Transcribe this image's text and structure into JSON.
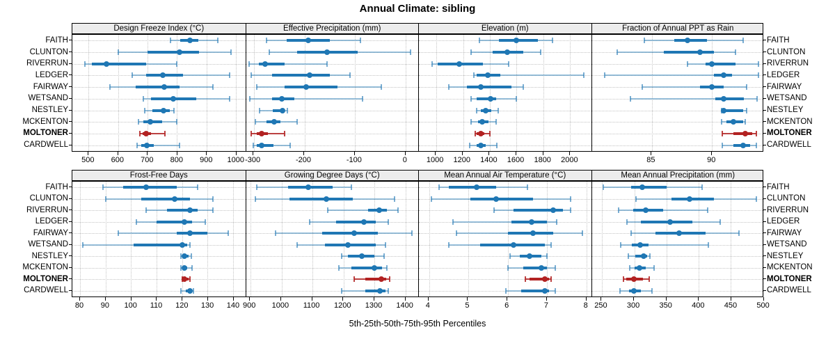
{
  "title": "Annual Climate: sibling",
  "subtitle": "5th-25th-50th-75th-95th Percentiles",
  "stations": [
    "FAITH",
    "CLUNTON",
    "RIVERRUN",
    "LEDGER",
    "FAIRWAY",
    "WETSAND",
    "NESTLEY",
    "MCKENTON",
    "MOLTONER",
    "CARDWELL"
  ],
  "highlight_station": "MOLTONER",
  "colors": {
    "series": "#1f77b4",
    "series_whisker": "rgba(31,119,180,0.45)",
    "series_cap": "rgba(31,119,180,0.6)",
    "highlight": "#b22222",
    "highlight_whisker": "rgba(178,34,34,0.85)",
    "header_bg": "#ececec",
    "grid": "#c3c3c3",
    "border": "#000000"
  },
  "chart_data": {
    "type": "dotplot",
    "subtype": "percentile-intervals",
    "percentile_labels": [
      "5th",
      "25th",
      "50th",
      "75th",
      "95th"
    ],
    "legend_position": "none",
    "grid": "dotted",
    "layout": {
      "rows": 2,
      "cols": 4
    },
    "categories": [
      "FAITH",
      "CLUNTON",
      "RIVERRUN",
      "LEDGER",
      "FAIRWAY",
      "WETSAND",
      "NESTLEY",
      "MCKENTON",
      "MOLTONER",
      "CARDWELL"
    ],
    "panels": [
      {
        "title": "Design Freeze Index (°C)",
        "xlim": [
          445,
          1030
        ],
        "ticks": [
          500,
          600,
          700,
          800,
          900,
          1000
        ],
        "values": [
          [
            778,
            812,
            845,
            872,
            940
          ],
          [
            600,
            700,
            810,
            875,
            985
          ],
          [
            487,
            512,
            560,
            695,
            800
          ],
          [
            648,
            695,
            753,
            820,
            980
          ],
          [
            573,
            660,
            757,
            808,
            922
          ],
          [
            685,
            712,
            787,
            865,
            980
          ],
          [
            690,
            717,
            755,
            775,
            790
          ],
          [
            670,
            687,
            710,
            750,
            800
          ],
          [
            675,
            683,
            696,
            712,
            760
          ],
          [
            665,
            680,
            697,
            722,
            810
          ]
        ]
      },
      {
        "title": "Effective Precipitation (mm)",
        "xlim": [
          -316,
          25
        ],
        "ticks": [
          -300,
          -200,
          -100,
          0
        ],
        "values": [
          [
            -275,
            -235,
            -193,
            -150,
            -90
          ],
          [
            -270,
            -215,
            -155,
            -95,
            10
          ],
          [
            -310,
            -290,
            -278,
            -240,
            -155
          ],
          [
            -305,
            -265,
            -190,
            -150,
            -110
          ],
          [
            -295,
            -240,
            -197,
            -135,
            -48
          ],
          [
            -308,
            -265,
            -245,
            -220,
            -85
          ],
          [
            -289,
            -263,
            -244,
            -239,
            -234
          ],
          [
            -298,
            -275,
            -260,
            -248,
            -215
          ],
          [
            -305,
            -295,
            -285,
            -272,
            -240
          ],
          [
            -302,
            -295,
            -285,
            -262,
            -228
          ]
        ]
      },
      {
        "title": "Elevation (m)",
        "xlim": [
          870,
          2156
        ],
        "ticks": [
          1000,
          1200,
          1400,
          1600,
          1800,
          2000
        ],
        "values": [
          [
            1320,
            1470,
            1600,
            1760,
            1870
          ],
          [
            1260,
            1420,
            1530,
            1650,
            1780
          ],
          [
            970,
            1010,
            1170,
            1350,
            1540
          ],
          [
            1280,
            1300,
            1385,
            1480,
            2100
          ],
          [
            1095,
            1230,
            1335,
            1560,
            1650
          ],
          [
            1260,
            1300,
            1405,
            1445,
            1600
          ],
          [
            1300,
            1330,
            1370,
            1410,
            1460
          ],
          [
            1260,
            1310,
            1345,
            1390,
            1445
          ],
          [
            1290,
            1300,
            1330,
            1360,
            1400
          ],
          [
            1250,
            1300,
            1330,
            1370,
            1450
          ]
        ]
      },
      {
        "title": "Fraction of Annual PPT as Rain",
        "xlim": [
          80,
          94.3
        ],
        "ticks": [
          85,
          90
        ],
        "values": [
          [
            84.4,
            86.9,
            88.0,
            89.6,
            92.6
          ],
          [
            82.1,
            86.0,
            89.0,
            90.2,
            92.0
          ],
          [
            88.0,
            89.5,
            90.0,
            92.0,
            93.9
          ],
          [
            81.1,
            90.2,
            91.0,
            91.7,
            93.9
          ],
          [
            84.2,
            89.0,
            90.0,
            91.0,
            92.9
          ],
          [
            83.2,
            90.3,
            91.0,
            92.7,
            93.8
          ],
          [
            90.8,
            90.9,
            91.0,
            92.6,
            92.9
          ],
          [
            90.8,
            91.2,
            91.8,
            92.6,
            92.8
          ],
          [
            90.9,
            91.8,
            92.8,
            93.4,
            93.7
          ],
          [
            90.9,
            91.8,
            92.6,
            93.2,
            93.7
          ]
        ]
      },
      {
        "title": "Frost-Free Days",
        "xlim": [
          77,
          144.5
        ],
        "ticks": [
          80,
          90,
          100,
          110,
          120,
          130,
          140
        ],
        "values": [
          [
            89,
            97,
            106,
            118,
            126
          ],
          [
            90,
            104,
            117,
            123,
            132
          ],
          [
            106,
            114,
            123,
            126,
            132
          ],
          [
            102,
            110,
            121,
            124,
            129
          ],
          [
            95,
            118,
            123,
            130,
            138
          ],
          [
            81,
            101,
            120,
            122,
            123
          ],
          [
            119.5,
            120.5,
            121,
            122.5,
            123.5
          ],
          [
            119.5,
            120.5,
            121,
            122,
            124
          ],
          [
            120,
            120.5,
            121,
            122.5,
            123
          ],
          [
            119.5,
            121.5,
            123,
            124,
            124.5
          ]
        ]
      },
      {
        "title": "Growing Degree Days (°C)",
        "xlim": [
          885,
          1441
        ],
        "ticks": [
          900,
          1000,
          1100,
          1200,
          1300,
          1400
        ],
        "values": [
          [
            920,
            1020,
            1085,
            1165,
            1225
          ],
          [
            915,
            1025,
            1145,
            1230,
            1365
          ],
          [
            1150,
            1280,
            1315,
            1340,
            1375
          ],
          [
            1090,
            1175,
            1265,
            1305,
            1345
          ],
          [
            980,
            1130,
            1235,
            1310,
            1420
          ],
          [
            1050,
            1140,
            1215,
            1305,
            1335
          ],
          [
            1195,
            1215,
            1258,
            1300,
            1330
          ],
          [
            1185,
            1225,
            1300,
            1325,
            1340
          ],
          [
            1235,
            1270,
            1322,
            1338,
            1350
          ],
          [
            1195,
            1270,
            1318,
            1335,
            1345
          ]
        ]
      },
      {
        "title": "Mean Annual Air Temperature (°C)",
        "xlim": [
          3.74,
          8.12
        ],
        "ticks": [
          4,
          5,
          6,
          7,
          8
        ],
        "values": [
          [
            4.25,
            4.5,
            5.2,
            5.7,
            6.5
          ],
          [
            4.05,
            5.05,
            5.7,
            6.65,
            7.6
          ],
          [
            5.65,
            6.15,
            7.15,
            7.4,
            7.6
          ],
          [
            4.6,
            6.1,
            6.6,
            7.0,
            7.25
          ],
          [
            4.7,
            6.0,
            6.65,
            7.15,
            7.9
          ],
          [
            4.5,
            5.3,
            6.15,
            6.95,
            7.1
          ],
          [
            6.05,
            6.3,
            6.55,
            6.85,
            7.0
          ],
          [
            6.0,
            6.4,
            6.85,
            7.0,
            7.2
          ],
          [
            6.45,
            6.55,
            6.95,
            7.05,
            7.1
          ],
          [
            5.95,
            6.35,
            6.95,
            7.05,
            7.2
          ]
        ]
      },
      {
        "title": "Mean Annual Precipitation (mm)",
        "xlim": [
          234,
          500.5
        ],
        "ticks": [
          250,
          300,
          350,
          400,
          450,
          500
        ],
        "values": [
          [
            252,
            295,
            312,
            350,
            405
          ],
          [
            303,
            358,
            386,
            424,
            490
          ],
          [
            276,
            298,
            318,
            345,
            414
          ],
          [
            289,
            310,
            356,
            390,
            434
          ],
          [
            295,
            333,
            370,
            411,
            463
          ],
          [
            279,
            296,
            309,
            322,
            415
          ],
          [
            291,
            302,
            315,
            320,
            324
          ],
          [
            293,
            300,
            308,
            318,
            331
          ],
          [
            283,
            287,
            299,
            313,
            323
          ],
          [
            278,
            292,
            299,
            310,
            327
          ]
        ]
      }
    ]
  }
}
